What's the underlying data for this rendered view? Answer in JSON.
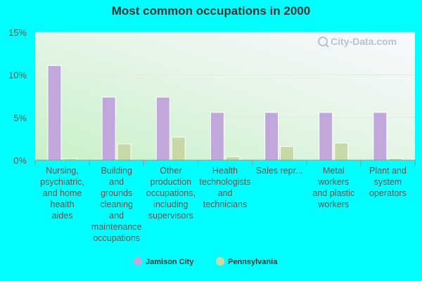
{
  "chart_data": {
    "type": "bar",
    "title": "Most common occupations in 2000",
    "categories": [
      [
        "Nursing,",
        "psychiatric,",
        "and home",
        "health",
        "aides"
      ],
      [
        "Building",
        "and",
        "grounds",
        "cleaning",
        "and",
        "maintenance",
        "occupations"
      ],
      [
        "Other",
        "production",
        "occupations,",
        "including",
        "supervisors"
      ],
      [
        "Health",
        "technologists",
        "and",
        "technicians"
      ],
      [
        "Sales repr..."
      ],
      [
        "Metal",
        "workers",
        "and plastic",
        "workers"
      ],
      [
        "Plant and",
        "system",
        "operators"
      ]
    ],
    "series": [
      {
        "name": "Jamison City",
        "color": "#c0a8dc",
        "values": [
          11.1,
          7.4,
          7.4,
          5.6,
          5.6,
          5.6,
          5.6
        ]
      },
      {
        "name": "Pennsylvania",
        "color": "#c8d9a8",
        "values": [
          0.2,
          1.9,
          2.7,
          0.4,
          1.6,
          2.0,
          0.2
        ]
      }
    ],
    "yticks": [
      "0%",
      "5%",
      "10%",
      "15%"
    ],
    "ylim": [
      0,
      15
    ],
    "grid": true,
    "legend_position": "bottom",
    "watermark": "City-Data.com"
  }
}
